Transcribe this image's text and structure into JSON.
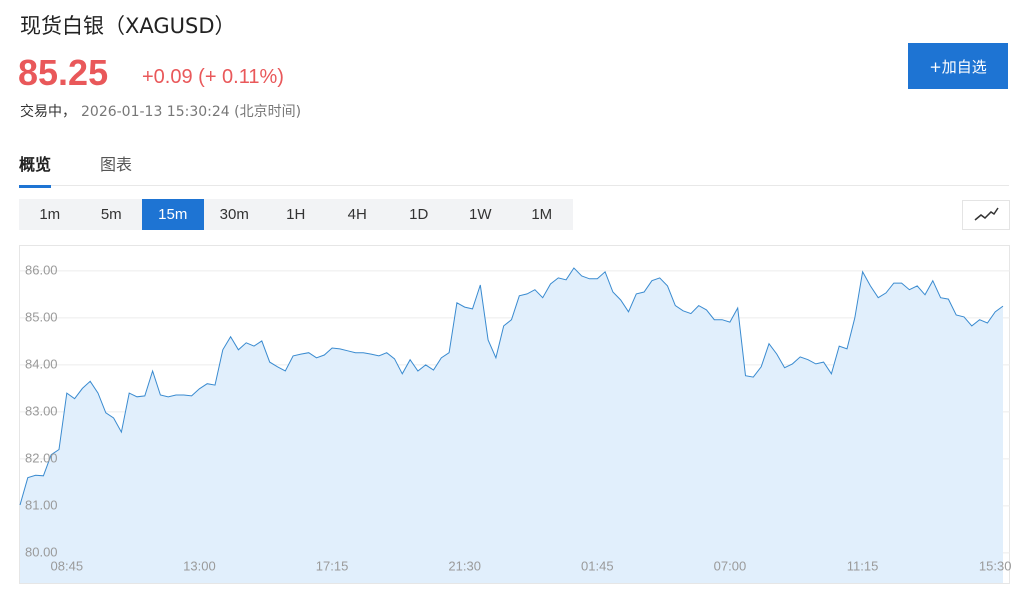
{
  "header": {
    "title": "现货白银（XAGUSD）",
    "price": "85.25",
    "change": "+0.09 (+ 0.11%)",
    "status": "交易中，",
    "timestamp": "2026-01-13 15:30:24 (北京时间)"
  },
  "watch_button": "+加自选",
  "tabs": [
    "概览",
    "图表"
  ],
  "active_tab": 0,
  "intervals": [
    "1m",
    "5m",
    "15m",
    "30m",
    "1H",
    "4H",
    "1D",
    "1W",
    "1M"
  ],
  "active_interval": 2,
  "chart_data": {
    "type": "area",
    "color": "#3a8bd0",
    "fill": "#e1effc",
    "grid": true,
    "categories": [
      null,
      null,
      null,
      null,
      null,
      null,
      "08:45",
      null,
      null,
      null,
      null,
      null,
      null,
      null,
      null,
      null,
      null,
      null,
      null,
      null,
      null,
      null,
      null,
      "13:00",
      null,
      null,
      null,
      null,
      null,
      null,
      null,
      null,
      null,
      null,
      null,
      null,
      null,
      null,
      null,
      null,
      "17:15",
      null,
      null,
      null,
      null,
      null,
      null,
      null,
      null,
      null,
      null,
      null,
      null,
      null,
      null,
      null,
      null,
      "21:30",
      null,
      null,
      null,
      null,
      null,
      null,
      null,
      null,
      null,
      null,
      null,
      null,
      null,
      null,
      null,
      null,
      "01:45",
      null,
      null,
      null,
      null,
      null,
      null,
      null,
      null,
      null,
      null,
      null,
      null,
      null,
      null,
      null,
      null,
      "07:00",
      null,
      null,
      null,
      null,
      null,
      null,
      null,
      null,
      null,
      null,
      null,
      null,
      null,
      null,
      null,
      null,
      "11:15",
      null,
      null,
      null,
      null,
      null,
      null,
      null,
      null,
      null,
      null,
      null,
      null,
      null,
      null,
      null,
      null,
      "15:30",
      null
    ],
    "values": [
      81.02,
      81.6,
      81.65,
      81.64,
      82.09,
      82.2,
      83.4,
      83.28,
      83.5,
      83.65,
      83.4,
      82.98,
      82.87,
      82.57,
      83.4,
      83.32,
      83.34,
      83.87,
      83.36,
      83.32,
      83.36,
      83.36,
      83.34,
      83.49,
      83.6,
      83.57,
      84.32,
      84.6,
      84.32,
      84.47,
      84.4,
      84.51,
      84.06,
      83.96,
      83.87,
      84.19,
      84.23,
      84.26,
      84.15,
      84.21,
      84.36,
      84.34,
      84.3,
      84.26,
      84.26,
      84.23,
      84.19,
      84.26,
      84.13,
      83.81,
      84.11,
      83.87,
      84.0,
      83.89,
      84.15,
      84.26,
      85.32,
      85.23,
      85.19,
      85.7,
      84.53,
      84.15,
      84.83,
      84.96,
      85.47,
      85.51,
      85.6,
      85.43,
      85.72,
      85.85,
      85.81,
      86.06,
      85.89,
      85.83,
      85.83,
      85.98,
      85.55,
      85.38,
      85.13,
      85.51,
      85.55,
      85.79,
      85.85,
      85.68,
      85.26,
      85.15,
      85.09,
      85.26,
      85.17,
      84.96,
      84.96,
      84.91,
      85.21,
      83.77,
      83.74,
      83.96,
      84.45,
      84.23,
      83.94,
      84.02,
      84.17,
      84.11,
      84.02,
      84.06,
      83.81,
      84.4,
      84.34,
      85.0,
      85.98,
      85.68,
      85.43,
      85.53,
      85.74,
      85.74,
      85.6,
      85.68,
      85.49,
      85.79,
      85.43,
      85.4,
      85.06,
      85.02,
      84.83,
      84.96,
      84.89,
      85.13,
      85.25
    ],
    "ylim": [
      79.36,
      86.55
    ],
    "yticks": [
      {
        "value": 80,
        "label": "80.00"
      },
      {
        "value": 81,
        "label": "81.00"
      },
      {
        "value": 82,
        "label": "82.00"
      },
      {
        "value": 83,
        "label": "83.00"
      },
      {
        "value": 84,
        "label": "84.00"
      },
      {
        "value": 85,
        "label": "85.00"
      },
      {
        "value": 86,
        "label": "86.00"
      }
    ]
  }
}
